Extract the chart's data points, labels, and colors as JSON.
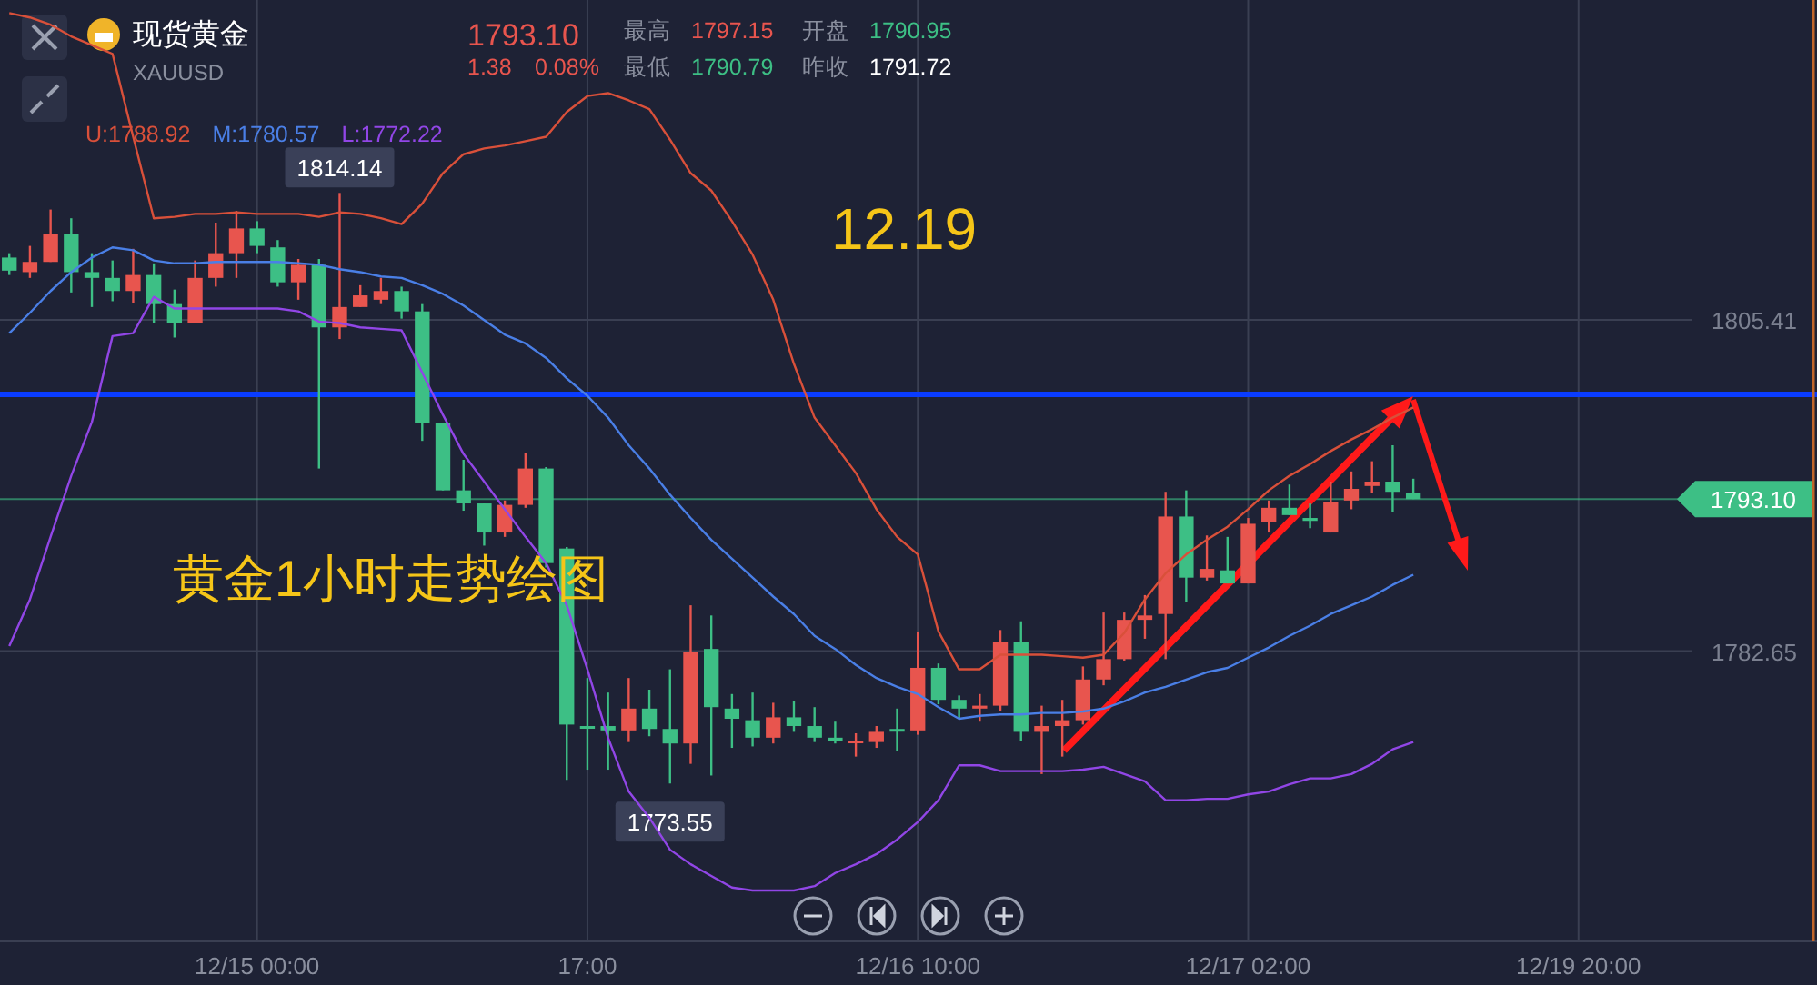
{
  "chart_data": {
    "type": "candlestick",
    "title": "现货黄金",
    "subtitle": "XAUUSD",
    "categories": [
      null,
      null,
      null,
      null,
      null,
      null,
      null,
      null,
      null,
      null,
      null,
      null,
      "12/15 00:00",
      null,
      null,
      null,
      null,
      null,
      null,
      null,
      null,
      null,
      null,
      null,
      null,
      null,
      null,
      null,
      "17:00",
      null,
      null,
      null,
      null,
      null,
      null,
      null,
      null,
      null,
      null,
      null,
      null,
      null,
      null,
      null,
      "12/16 10:00",
      null,
      null,
      null,
      null,
      null,
      null,
      null,
      null,
      null,
      null,
      null,
      null,
      null,
      null,
      null,
      "12/17 02:00",
      null,
      null,
      null,
      null,
      null,
      null,
      null,
      null,
      null,
      null,
      null,
      null,
      null,
      null,
      null,
      "12/19 20:00",
      null,
      null,
      null,
      null,
      null,
      null,
      null,
      null,
      null,
      null,
      null
    ],
    "ohlc": [
      [
        1809.7,
        1810.0,
        1808.5,
        1808.8
      ],
      [
        1808.7,
        1810.5,
        1808.3,
        1809.4
      ],
      [
        1809.4,
        1813.0,
        1809.4,
        1811.3
      ],
      [
        1811.3,
        1812.4,
        1807.3,
        1808.7
      ],
      [
        1808.7,
        1810.0,
        1806.3,
        1808.3
      ],
      [
        1808.3,
        1809.5,
        1806.7,
        1807.4
      ],
      [
        1807.4,
        1810.3,
        1806.6,
        1808.5
      ],
      [
        1808.5,
        1809.3,
        1805.2,
        1806.5
      ],
      [
        1806.5,
        1807.5,
        1804.2,
        1805.2
      ],
      [
        1805.2,
        1809.5,
        1805.2,
        1808.3
      ],
      [
        1808.3,
        1812.1,
        1807.7,
        1810.0
      ],
      [
        1810.0,
        1812.9,
        1808.3,
        1811.7
      ],
      [
        1811.7,
        1812.2,
        1810.0,
        1810.5
      ],
      [
        1810.4,
        1810.9,
        1807.7,
        1808.0
      ],
      [
        1808.0,
        1809.6,
        1806.8,
        1809.2
      ],
      [
        1809.2,
        1809.6,
        1795.2,
        1804.9
      ],
      [
        1804.9,
        1814.14,
        1804.1,
        1806.3
      ],
      [
        1806.3,
        1807.8,
        1806.3,
        1807.1
      ],
      [
        1806.8,
        1808.3,
        1806.5,
        1807.4
      ],
      [
        1807.4,
        1807.7,
        1805.5,
        1806.0
      ],
      [
        1806.0,
        1806.5,
        1797.1,
        1798.3
      ],
      [
        1798.3,
        1798.3,
        1793.7,
        1793.7
      ],
      [
        1793.7,
        1795.8,
        1792.3,
        1792.8
      ],
      [
        1792.8,
        1792.8,
        1789.9,
        1790.8
      ],
      [
        1790.8,
        1793.0,
        1790.5,
        1792.7
      ],
      [
        1792.7,
        1796.3,
        1792.5,
        1795.2
      ],
      [
        1795.2,
        1795.3,
        1788.4,
        1788.7
      ],
      [
        1789.7,
        1789.8,
        1773.8,
        1777.6
      ],
      [
        1777.5,
        1780.8,
        1774.5,
        1777.4
      ],
      [
        1777.5,
        1779.8,
        1774.5,
        1777.2
      ],
      [
        1777.2,
        1780.8,
        1776.4,
        1778.7
      ],
      [
        1778.7,
        1780.0,
        1776.8,
        1777.3
      ],
      [
        1777.3,
        1781.4,
        1773.55,
        1776.3
      ],
      [
        1776.3,
        1785.8,
        1774.9,
        1782.6
      ],
      [
        1782.8,
        1785.1,
        1774.1,
        1778.8
      ],
      [
        1778.7,
        1779.7,
        1776.0,
        1778.0
      ],
      [
        1777.9,
        1779.8,
        1776.1,
        1776.7
      ],
      [
        1776.7,
        1779.1,
        1776.3,
        1778.1
      ],
      [
        1778.1,
        1779.2,
        1777.1,
        1777.5
      ],
      [
        1777.5,
        1778.8,
        1776.4,
        1776.7
      ],
      [
        1776.7,
        1777.8,
        1776.3,
        1776.5
      ],
      [
        1776.4,
        1777.0,
        1775.4,
        1776.5
      ],
      [
        1776.4,
        1777.5,
        1776.0,
        1777.1
      ],
      [
        1777.3,
        1778.7,
        1775.8,
        1777.2
      ],
      [
        1777.2,
        1784.0,
        1776.9,
        1781.5
      ],
      [
        1781.5,
        1781.8,
        1779.0,
        1779.3
      ],
      [
        1779.3,
        1779.6,
        1778.0,
        1778.7
      ],
      [
        1778.7,
        1779.7,
        1777.8,
        1778.9
      ],
      [
        1778.9,
        1784.1,
        1778.5,
        1783.3
      ],
      [
        1783.3,
        1784.7,
        1776.5,
        1777.1
      ],
      [
        1777.1,
        1778.9,
        1774.2,
        1777.5
      ],
      [
        1777.5,
        1779.3,
        1775.4,
        1777.9
      ],
      [
        1777.9,
        1781.6,
        1777.6,
        1780.7
      ],
      [
        1780.7,
        1785.3,
        1780.3,
        1782.1
      ],
      [
        1782.1,
        1785.3,
        1782.0,
        1784.8
      ],
      [
        1784.8,
        1786.5,
        1783.5,
        1785.1
      ],
      [
        1785.2,
        1793.6,
        1782.1,
        1791.9
      ],
      [
        1791.9,
        1793.7,
        1786.0,
        1787.7
      ],
      [
        1787.7,
        1790.6,
        1787.5,
        1788.3
      ],
      [
        1788.2,
        1790.5,
        1787.3,
        1787.3
      ],
      [
        1787.3,
        1791.8,
        1787.3,
        1791.4
      ],
      [
        1791.5,
        1793.0,
        1790.8,
        1792.5
      ],
      [
        1792.5,
        1794.1,
        1792.0,
        1792.0
      ],
      [
        1791.8,
        1792.8,
        1791.1,
        1791.6
      ],
      [
        1790.8,
        1794.3,
        1790.8,
        1792.9
      ],
      [
        1793.0,
        1795.0,
        1792.4,
        1793.8
      ],
      [
        1794.0,
        1795.7,
        1793.5,
        1794.3
      ],
      [
        1794.3,
        1796.8,
        1792.2,
        1793.6
      ],
      [
        1793.5,
        1794.5,
        1793.1,
        1793.1
      ],
      null,
      null,
      null,
      null,
      null,
      null,
      null,
      null,
      null,
      null,
      null,
      null,
      null,
      null,
      null,
      null,
      null,
      null,
      null
    ],
    "colors": [
      "#3dbf85",
      "#e8554e",
      "#e8554e",
      "#3dbf85",
      "#3dbf85",
      "#3dbf85",
      "#e8554e",
      "#3dbf85",
      "#3dbf85",
      "#e8554e",
      "#e8554e",
      "#e8554e",
      "#3dbf85",
      "#3dbf85",
      "#e8554e",
      "#3dbf85",
      "#e8554e",
      "#e8554e",
      "#e8554e",
      "#3dbf85",
      "#3dbf85",
      "#3dbf85",
      "#3dbf85",
      "#3dbf85",
      "#e8554e",
      "#e8554e",
      "#3dbf85",
      "#3dbf85",
      "#3dbf85",
      "#3dbf85",
      "#e8554e",
      "#3dbf85",
      "#3dbf85",
      "#e8554e",
      "#3dbf85",
      "#3dbf85",
      "#3dbf85",
      "#e8554e",
      "#3dbf85",
      "#3dbf85",
      "#3dbf85",
      "#e8554e",
      "#e8554e",
      "#3dbf85",
      "#e8554e",
      "#3dbf85",
      "#3dbf85",
      "#e8554e",
      "#e8554e",
      "#3dbf85",
      "#e8554e",
      "#e8554e",
      "#e8554e",
      "#e8554e",
      "#e8554e",
      "#e8554e",
      "#e8554e",
      "#3dbf85",
      "#e8554e",
      "#3dbf85",
      "#e8554e",
      "#e8554e",
      "#3dbf85",
      "#3dbf85",
      "#e8554e",
      "#e8554e",
      "#e8554e",
      "#3dbf85",
      "#3dbf85",
      null,
      null,
      null,
      null,
      null,
      null,
      null,
      null,
      null,
      null,
      null,
      null,
      null,
      null,
      null,
      null,
      null,
      null,
      null
    ],
    "series": [
      {
        "name": "U:1788.92",
        "type": "line",
        "color": "#d9503a",
        "values": [
          1826.5,
          1826.2,
          1825.7,
          1824.9,
          1824.3,
          1823.7,
          1818.0,
          1812.4,
          1812.5,
          1812.7,
          1812.7,
          1812.8,
          1812.7,
          1812.7,
          1812.7,
          1812.5,
          1812.8,
          1812.7,
          1812.4,
          1812.0,
          1813.4,
          1815.5,
          1816.8,
          1817.2,
          1817.4,
          1817.7,
          1818.0,
          1819.7,
          1820.8,
          1821.0,
          1820.5,
          1819.9,
          1817.8,
          1815.5,
          1814.3,
          1812.2,
          1809.9,
          1806.8,
          1802.4,
          1798.7,
          1796.8,
          1794.9,
          1792.4,
          1790.5,
          1789.3,
          1784.0,
          1781.4,
          1781.4,
          1782.4,
          1782.4,
          1782.4,
          1782.3,
          1782.2,
          1782.4,
          1783.9,
          1786.2,
          1788.0,
          1789.3,
          1790.3,
          1791.2,
          1792.4,
          1793.7,
          1794.7,
          1795.5,
          1796.4,
          1797.2,
          1797.9,
          1798.7,
          1799.4,
          null,
          null,
          null,
          null,
          null,
          null,
          null,
          null,
          null,
          null,
          null,
          null,
          null,
          null,
          null,
          null,
          null,
          null,
          null
        ]
      },
      {
        "name": "M:1780.57",
        "type": "line",
        "color": "#4a7fe6",
        "values": [
          1804.5,
          1805.9,
          1807.4,
          1808.7,
          1809.7,
          1810.4,
          1810.2,
          1809.5,
          1809.3,
          1809.3,
          1809.4,
          1809.4,
          1809.4,
          1809.4,
          1809.3,
          1809.2,
          1808.9,
          1808.7,
          1808.4,
          1808.3,
          1807.8,
          1807.2,
          1806.4,
          1805.4,
          1804.4,
          1803.8,
          1802.8,
          1801.4,
          1800.2,
          1798.7,
          1796.8,
          1795.2,
          1793.4,
          1791.8,
          1790.3,
          1789.0,
          1787.7,
          1786.4,
          1785.2,
          1783.7,
          1782.8,
          1781.7,
          1780.8,
          1780.2,
          1779.7,
          1778.8,
          1778.0,
          1778.2,
          1778.3,
          1778.3,
          1778.4,
          1778.4,
          1778.5,
          1778.7,
          1779.2,
          1779.8,
          1780.2,
          1780.7,
          1781.2,
          1781.5,
          1782.2,
          1782.9,
          1783.7,
          1784.4,
          1785.2,
          1785.8,
          1786.4,
          1787.2,
          1787.9,
          null,
          null,
          null,
          null,
          null,
          null,
          null,
          null,
          null,
          null,
          null,
          null,
          null,
          null,
          null,
          null,
          null,
          null,
          null
        ]
      },
      {
        "name": "L:1772.22",
        "type": "line",
        "color": "#9146e6",
        "values": [
          1783.0,
          1786.2,
          1790.5,
          1794.7,
          1798.4,
          1804.3,
          1804.5,
          1807.0,
          1806.2,
          1806.2,
          1806.2,
          1806.2,
          1806.2,
          1806.2,
          1806.0,
          1805.3,
          1805.2,
          1804.9,
          1804.8,
          1804.7,
          1801.8,
          1798.9,
          1796.2,
          1794.3,
          1792.4,
          1790.5,
          1788.7,
          1785.8,
          1781.4,
          1776.7,
          1773.0,
          1771.2,
          1769.0,
          1768.0,
          1767.2,
          1766.4,
          1766.2,
          1766.2,
          1766.2,
          1766.5,
          1767.4,
          1768.0,
          1768.7,
          1769.7,
          1770.9,
          1772.4,
          1774.8,
          1774.8,
          1774.4,
          1774.4,
          1774.4,
          1774.4,
          1774.5,
          1774.7,
          1774.2,
          1773.7,
          1772.4,
          1772.4,
          1772.5,
          1772.5,
          1772.8,
          1773.0,
          1773.5,
          1773.9,
          1773.9,
          1774.2,
          1774.9,
          1775.9,
          1776.4,
          null,
          null,
          null,
          null,
          null,
          null,
          null,
          null,
          null,
          null,
          null,
          null,
          null,
          null,
          null,
          null,
          null,
          null,
          null
        ]
      }
    ],
    "ylim": [
      1762.7,
      1827.4
    ],
    "yticks": [
      1805.41,
      1782.65
    ],
    "grid": true,
    "legend": "top left",
    "ref_lines": [
      {
        "axis": "y",
        "value": 1800.3,
        "color": "#0a3cff"
      },
      {
        "axis": "y",
        "value": 1793.1,
        "label": "1793.10",
        "color": "#3dbf85"
      }
    ],
    "annotations": [
      "1793.10",
      "1.38",
      "0.08%",
      "最高",
      "1797.15",
      "开盘",
      "1790.95",
      "最低",
      "1790.79",
      "昨收",
      "1791.72",
      "12.19",
      "黄金1小时走势绘图",
      {
        "text": "1814.14",
        "y": 1814.14
      },
      {
        "text": "1773.55",
        "y": 1773.55
      }
    ]
  }
}
